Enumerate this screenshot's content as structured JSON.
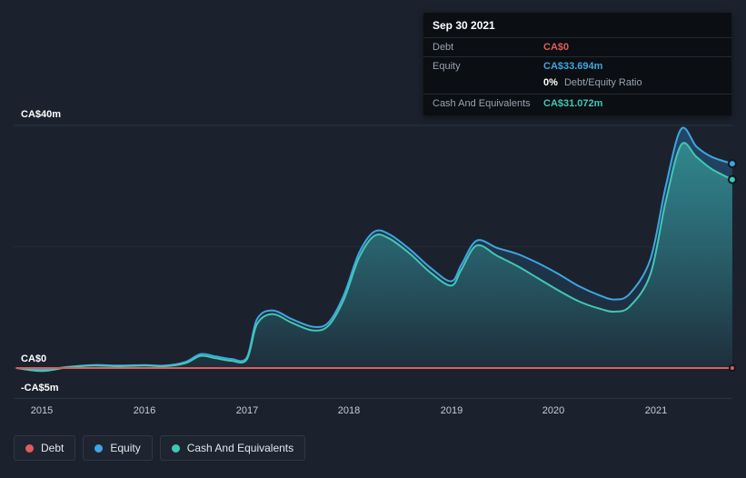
{
  "colors": {
    "background": "#1b222d",
    "grid": "#2a3441",
    "debt": "#e05c5c",
    "equity": "#3ea6e0",
    "cash": "#41c7b5"
  },
  "tooltip": {
    "date": "Sep 30 2021",
    "debt_label": "Debt",
    "debt_value": "CA$0",
    "equity_label": "Equity",
    "equity_value": "CA$33.694m",
    "ratio_value": "0%",
    "ratio_label": "Debt/Equity Ratio",
    "cash_label": "Cash And Equivalents",
    "cash_value": "CA$31.072m"
  },
  "y_axis": {
    "top": "CA$40m",
    "zero": "CA$0",
    "neg": "-CA$5m"
  },
  "x_axis": {
    "ticks": [
      "2015",
      "2016",
      "2017",
      "2018",
      "2019",
      "2020",
      "2021"
    ]
  },
  "legend": {
    "items": [
      {
        "label": "Debt",
        "color": "#e05c5c"
      },
      {
        "label": "Equity",
        "color": "#3ea6e0"
      },
      {
        "label": "Cash And Equivalents",
        "color": "#41c7b5"
      }
    ]
  },
  "chart_data": {
    "type": "area",
    "title": "Debt / Equity / Cash history to Sep 30 2021 (CA$m)",
    "ylim": [
      -5,
      40
    ],
    "x_range": [
      2014.75,
      2021.75
    ],
    "y_gridlines": [
      40,
      20,
      0,
      -5
    ],
    "x": [
      2014.75,
      2015.0,
      2015.25,
      2015.5,
      2015.75,
      2016.0,
      2016.2,
      2016.4,
      2016.55,
      2016.7,
      2016.85,
      2017.0,
      2017.1,
      2017.25,
      2017.45,
      2017.65,
      2017.8,
      2017.95,
      2018.1,
      2018.25,
      2018.4,
      2018.6,
      2018.8,
      2019.0,
      2019.1,
      2019.25,
      2019.45,
      2019.65,
      2019.85,
      2020.05,
      2020.25,
      2020.45,
      2020.6,
      2020.75,
      2020.95,
      2021.1,
      2021.25,
      2021.4,
      2021.55,
      2021.75
    ],
    "series": [
      {
        "name": "Debt",
        "color": "#e05c5c",
        "end_value": 0,
        "values": [
          0,
          0,
          0,
          0,
          0,
          0,
          0,
          0,
          0,
          0,
          0,
          0,
          0,
          0,
          0,
          0,
          0,
          0,
          0,
          0,
          0,
          0,
          0,
          0,
          0,
          0,
          0,
          0,
          0,
          0,
          0,
          0,
          0,
          0,
          0,
          0,
          0,
          0,
          0,
          0
        ]
      },
      {
        "name": "Equity",
        "color": "#3ea6e0",
        "end_value": 33.694,
        "values": [
          0,
          -0.3,
          0.2,
          0.5,
          0.4,
          0.5,
          0.4,
          1.0,
          2.3,
          1.9,
          1.5,
          1.7,
          8.0,
          9.5,
          8.0,
          6.8,
          7.5,
          12.0,
          19.0,
          22.5,
          22.0,
          19.5,
          16.5,
          14.3,
          17.0,
          21.0,
          19.8,
          18.8,
          17.3,
          15.5,
          13.5,
          12.0,
          11.3,
          12.3,
          18.0,
          30.0,
          39.4,
          36.5,
          34.8,
          33.694
        ]
      },
      {
        "name": "Cash And Equivalents",
        "color": "#41c7b5",
        "end_value": 31.072,
        "values": [
          0,
          -0.5,
          0.1,
          0.4,
          0.3,
          0.4,
          0.3,
          0.8,
          2.0,
          1.6,
          1.2,
          1.4,
          7.2,
          8.9,
          7.4,
          6.2,
          7.0,
          11.3,
          18.2,
          21.8,
          21.3,
          18.8,
          15.7,
          13.6,
          16.2,
          20.2,
          18.5,
          16.8,
          14.8,
          12.8,
          11.0,
          9.8,
          9.3,
          10.2,
          15.5,
          27.5,
          36.8,
          34.8,
          32.8,
          31.072
        ]
      }
    ]
  }
}
